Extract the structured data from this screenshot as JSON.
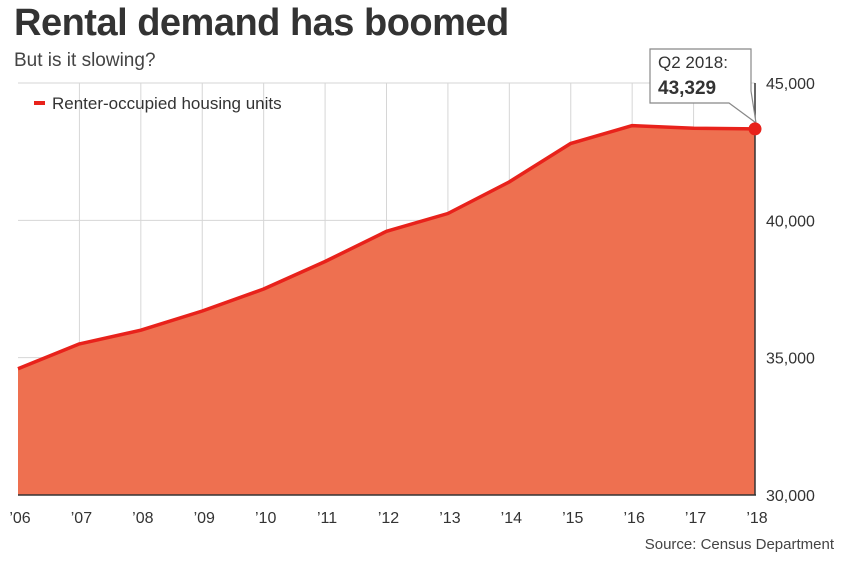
{
  "header": {
    "title": "Rental demand has boomed",
    "subtitle": "But is it slowing?"
  },
  "footer": {
    "source": "Source: Census Department"
  },
  "colors": {
    "area_fill": "#EE7050",
    "line": "#E8221B",
    "grid": "#d6d6d6"
  },
  "chart_data": {
    "type": "area",
    "x": [
      "’06",
      "’07",
      "’08",
      "’09",
      "’10",
      "’11",
      "’12",
      "’13",
      "’14",
      "’15",
      "’16",
      "’17",
      "’18"
    ],
    "series": [
      {
        "name": "Renter-occupied housing units",
        "values": [
          34600,
          35500,
          36000,
          36700,
          37500,
          38500,
          39600,
          40250,
          41400,
          42800,
          43450,
          43350,
          43329
        ]
      }
    ],
    "ylim": [
      30000,
      45000
    ],
    "yticks": [
      30000,
      35000,
      40000,
      45000
    ],
    "ytick_labels": [
      "30,000",
      "35,000",
      "40,000",
      "45,000"
    ],
    "y_axis_position": "right",
    "grid": true,
    "legend": {
      "label": "Renter-occupied housing units",
      "placement": "top-left"
    },
    "annotation": {
      "label": "Q2 2018:",
      "value": "43,329"
    }
  }
}
